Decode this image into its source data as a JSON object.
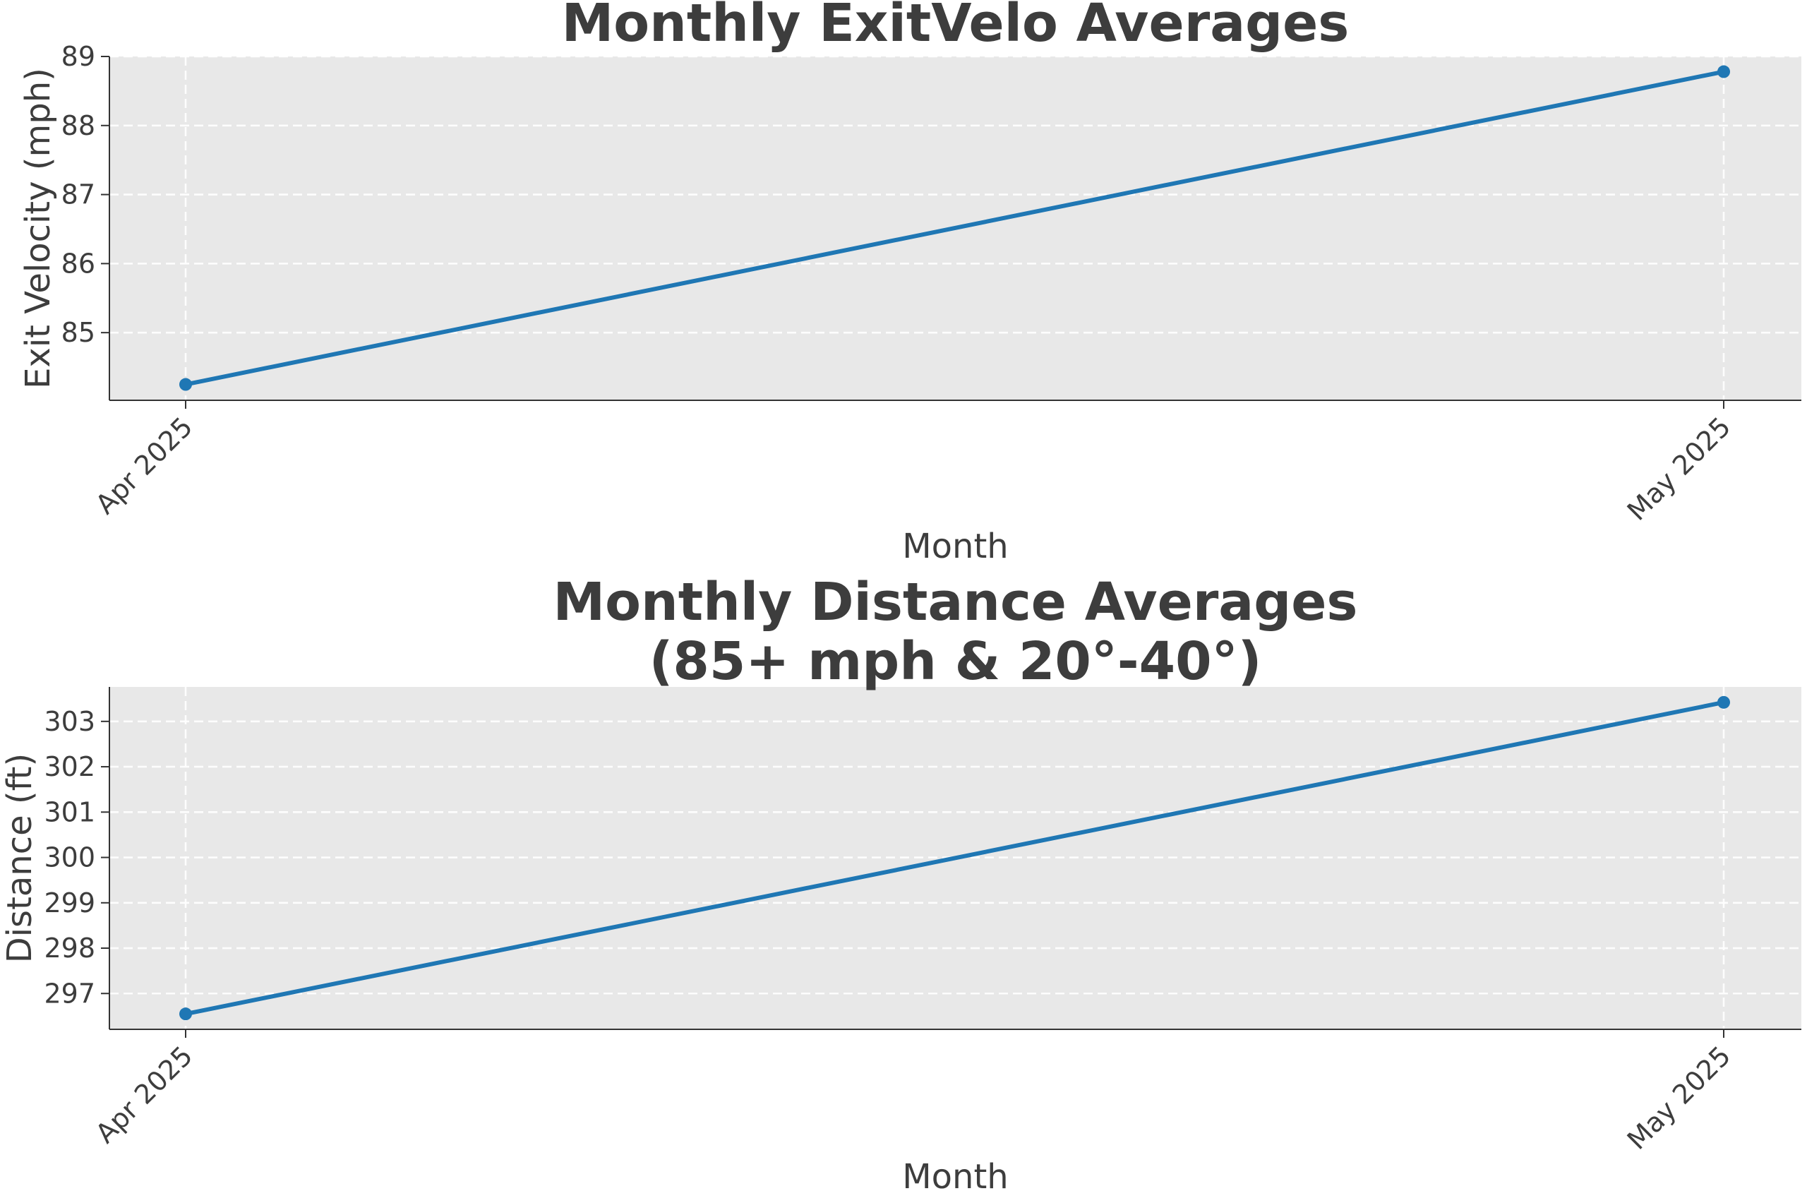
{
  "colors": {
    "series": "#1f77b4",
    "plot_bg": "#e8e8e8",
    "text": "#3d3d3d"
  },
  "chart_data": [
    {
      "type": "line",
      "title": "Monthly ExitVelo Averages",
      "title_lines": [
        "Monthly ExitVelo Averages"
      ],
      "xlabel": "Month",
      "ylabel": "Exit Velocity (mph)",
      "categories": [
        "Apr 2025",
        "May 2025"
      ],
      "series": [
        {
          "values": [
            84.25,
            88.78
          ]
        }
      ],
      "ylim": [
        84.02,
        89.0
      ],
      "yticks": [
        85,
        86,
        87,
        88,
        89
      ],
      "grid": true
    },
    {
      "type": "line",
      "title": "Monthly Distance Averages (85+ mph & 20°-40°)",
      "title_lines": [
        "Monthly Distance Averages",
        "(85+ mph & 20°-40°)"
      ],
      "xlabel": "Month",
      "ylabel": "Distance (ft)",
      "categories": [
        "Apr 2025",
        "May 2025"
      ],
      "series": [
        {
          "values": [
            296.55,
            303.42
          ]
        }
      ],
      "ylim": [
        296.21,
        303.76
      ],
      "yticks": [
        297,
        298,
        299,
        300,
        301,
        302,
        303
      ],
      "grid": true
    }
  ]
}
